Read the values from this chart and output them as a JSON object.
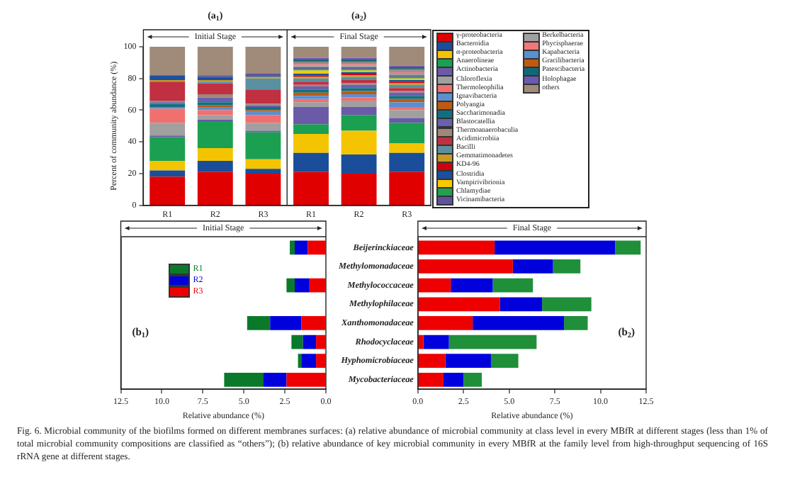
{
  "chart_data": [
    {
      "type": "bar",
      "stacked": true,
      "categories": [
        "R1",
        "R2",
        "R3",
        "R1",
        "R2",
        "R3"
      ],
      "ylabel": "Percent of community abundance (%)",
      "ylim": [
        0,
        100
      ],
      "yticks": [
        0,
        20,
        40,
        60,
        80,
        100
      ],
      "legend": "right",
      "annotations": [
        "(a$_{1}$)",
        "(a$_{2}$)",
        "Initial Stage",
        "Final Stage",
        "Fig. 6. Microbial community of the biofilms formed on different membranes surfaces: (a) relative abundance of microbial community at class level in every MBfR at different stages (less than 1% of total microbial community compositions are classified as “others”); (b) relative abundance of key microbial community in every MBfR at the family level from high-throughput sequencing of 16S rRNA gene at different stages."
      ],
      "series": [
        {
          "name": "γ-proteobacteria",
          "color": "#e00000",
          "values": [
            18,
            21,
            20,
            21,
            20,
            21
          ]
        },
        {
          "name": "Bacteroidia",
          "color": "#1a4e9a",
          "values": [
            4,
            7,
            3,
            12,
            12,
            12
          ]
        },
        {
          "name": "α-proteobacteria",
          "color": "#f5c400",
          "values": [
            6,
            8,
            6,
            12,
            15,
            6
          ]
        },
        {
          "name": "Anaerolineae",
          "color": "#1aa050",
          "values": [
            15,
            17,
            17,
            6,
            10,
            13
          ]
        },
        {
          "name": "Actinobacteria",
          "color": "#6a5aa8",
          "values": [
            1,
            1,
            1,
            11,
            5,
            3
          ]
        },
        {
          "name": "Chloroflexia",
          "color": "#a0a0a0",
          "values": [
            8,
            3,
            5,
            3,
            4,
            5
          ]
        },
        {
          "name": "Thermoleophilia",
          "color": "#f07070",
          "values": [
            9,
            3,
            5,
            2,
            2,
            2
          ]
        },
        {
          "name": "Ignavibacteria",
          "color": "#5b8fd0",
          "values": [
            1,
            2,
            2,
            2,
            2,
            3
          ]
        },
        {
          "name": "Polyangia",
          "color": "#c05a10",
          "values": [
            0,
            1,
            1,
            2,
            2,
            2
          ]
        },
        {
          "name": "Saccharimonadia",
          "color": "#107080",
          "values": [
            2,
            2,
            2,
            2,
            2,
            2
          ]
        },
        {
          "name": "Blastocatellia",
          "color": "#6a60b0",
          "values": [
            1,
            3,
            1,
            2,
            2,
            2
          ]
        },
        {
          "name": "Thermoanaerobaculia",
          "color": "#a08878",
          "values": [
            1,
            2,
            1,
            1,
            1,
            1
          ]
        },
        {
          "name": "Acidimicrobiia",
          "color": "#c03040",
          "values": [
            12,
            7,
            9,
            2,
            2,
            2
          ]
        },
        {
          "name": "Bacilli",
          "color": "#5a90a0",
          "values": [
            0,
            1,
            7,
            2,
            2,
            2
          ]
        },
        {
          "name": "Gemmatimonadetes",
          "color": "#c89a20",
          "values": [
            1,
            1,
            1,
            1,
            1,
            1
          ]
        },
        {
          "name": "KD4-96",
          "color": "#d00010",
          "values": [
            0,
            0,
            0,
            1,
            1,
            1
          ]
        },
        {
          "name": "Clostridia",
          "color": "#1a50a0",
          "values": [
            3,
            2,
            1,
            1,
            1,
            1
          ]
        },
        {
          "name": "Vampirivibrionia",
          "color": "#f8c800",
          "values": [
            0,
            0,
            0,
            2,
            1,
            1
          ]
        },
        {
          "name": "Chlamydiae",
          "color": "#20a050",
          "values": [
            0,
            0,
            0,
            1,
            1,
            1
          ]
        },
        {
          "name": "Vicinamibacteria",
          "color": "#6050a0",
          "values": [
            0,
            1,
            1,
            1,
            1,
            1
          ]
        },
        {
          "name": "Berkelbacteria",
          "color": "#a0a0a0",
          "values": [
            0,
            0,
            0,
            1,
            1,
            1
          ]
        },
        {
          "name": "Phycisphaerae",
          "color": "#f07878",
          "values": [
            0,
            0,
            0,
            1,
            1,
            1
          ]
        },
        {
          "name": "Kapabacteria",
          "color": "#5a90d0",
          "values": [
            0,
            0,
            0,
            1,
            1,
            1
          ]
        },
        {
          "name": "Gracilibacteria",
          "color": "#c05a10",
          "values": [
            0,
            0,
            0,
            1,
            1,
            1
          ]
        },
        {
          "name": "Patescibacteria",
          "color": "#106878",
          "values": [
            0,
            0,
            0,
            1,
            1,
            1
          ]
        },
        {
          "name": "Holophagae",
          "color": "#6a5ab0",
          "values": [
            0,
            0,
            0,
            1,
            1,
            1
          ]
        },
        {
          "name": "others",
          "color": "#a08a7a",
          "values": [
            18,
            18,
            17,
            7,
            7,
            12
          ]
        }
      ]
    },
    {
      "type": "bar",
      "orientation": "horizontal",
      "stacked": true,
      "categories": [
        null,
        null,
        null,
        null,
        null,
        null,
        null,
        null
      ],
      "xlabel": "Relative abundance (%)",
      "xlim": [
        12.5,
        0
      ],
      "xticks": [
        12.5,
        {
          "value": 10,
          "label": "10.0"
        },
        7.5,
        {
          "value": 5,
          "label": "5.0"
        },
        2.5,
        {
          "value": 0,
          "label": "0.0"
        }
      ],
      "tick_labels": "x",
      "legend": "top left",
      "annotations": [
        "(b$_{1}$)",
        "Initial Stage"
      ],
      "series": [
        {
          "name": "R3",
          "color": "#ee0000",
          "values": [
            1.1,
            0,
            1.0,
            0,
            1.5,
            0.6,
            0.6,
            2.4
          ]
        },
        {
          "name": "R2",
          "color": "#0000dd",
          "values": [
            0.8,
            0,
            0.9,
            0,
            1.9,
            0.8,
            0.9,
            1.4
          ]
        },
        {
          "name": "R1",
          "color": "#0a7a2a",
          "values": [
            0.3,
            0,
            0.5,
            0,
            1.4,
            0.7,
            0.2,
            2.4
          ]
        }
      ]
    },
    {
      "type": "bar",
      "orientation": "horizontal",
      "stacked": true,
      "categories": [
        "Beijerinckiaceae",
        "Methylomonadaceae",
        "Methylococcaceae",
        "Methylophilaceae",
        "Xanthomonadaceae",
        "Rhodocyclaceae",
        "Hyphomicrobiaceae",
        "Mycobacteriaceae"
      ],
      "xlabel": "Relative abundance (%)",
      "xlim": [
        0,
        12.5
      ],
      "xticks": [
        {
          "value": 0,
          "label": "0.0"
        },
        2.5,
        {
          "value": 5,
          "label": "5.0"
        },
        7.5,
        {
          "value": 10,
          "label": "10.0"
        },
        12.5
      ],
      "annotations": [
        "(b$_{2}$)",
        "Final Stage"
      ],
      "series": [
        {
          "color": "#ee0000",
          "values": [
            4.2,
            5.2,
            1.8,
            4.5,
            3.0,
            0.3,
            1.5,
            1.4
          ]
        },
        {
          "color": "#0000dd",
          "values": [
            6.6,
            2.2,
            2.3,
            2.3,
            5.0,
            1.4,
            2.5,
            1.1
          ]
        },
        {
          "color": "#1f8f3a",
          "values": [
            1.4,
            1.5,
            2.2,
            2.7,
            1.3,
            4.8,
            1.5,
            1.0
          ]
        }
      ]
    }
  ]
}
